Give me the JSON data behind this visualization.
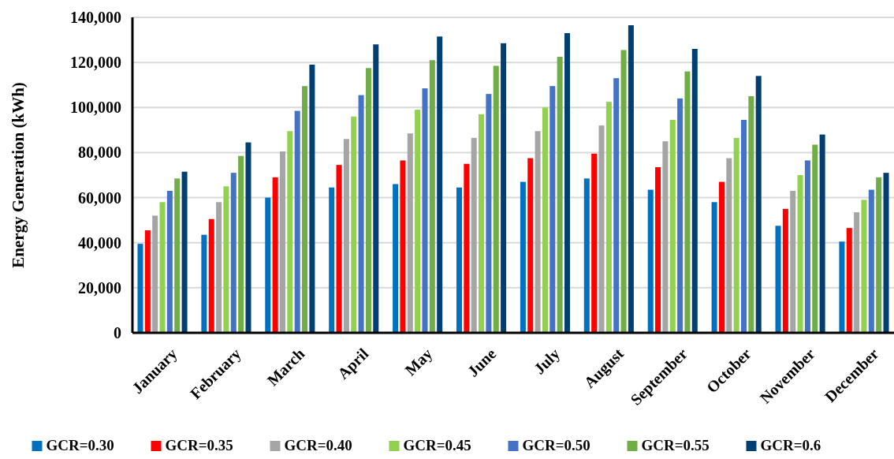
{
  "chart_data": {
    "type": "bar",
    "ylabel": "Energy Generation (kWh)",
    "categories": [
      "January",
      "February",
      "March",
      "April",
      "May",
      "June",
      "July",
      "August",
      "September",
      "October",
      "November",
      "December"
    ],
    "series": [
      {
        "name": "GCR=0.30",
        "color": "#0070c0",
        "values": [
          39500,
          43500,
          60000,
          64500,
          66000,
          64500,
          67000,
          68500,
          63500,
          58000,
          47500,
          40500
        ]
      },
      {
        "name": "GCR=0.35",
        "color": "#ff0000",
        "values": [
          45500,
          50500,
          69000,
          74500,
          76500,
          75000,
          77500,
          79500,
          73500,
          67000,
          55000,
          46500
        ]
      },
      {
        "name": "GCR=0.40",
        "color": "#a5a5a5",
        "values": [
          52000,
          58000,
          80500,
          86000,
          88500,
          86500,
          89500,
          92000,
          85000,
          77500,
          63000,
          53500
        ]
      },
      {
        "name": "GCR=0.45",
        "color": "#92d050",
        "values": [
          58000,
          65000,
          89500,
          96000,
          99000,
          97000,
          100000,
          102500,
          94500,
          86500,
          70000,
          59000
        ]
      },
      {
        "name": "GCR=0.50",
        "color": "#4472c4",
        "values": [
          63000,
          71000,
          98500,
          105500,
          108500,
          106000,
          109500,
          113000,
          104000,
          94500,
          76500,
          63500
        ]
      },
      {
        "name": "GCR=0.55",
        "color": "#70ad47",
        "values": [
          68500,
          78500,
          109500,
          117500,
          121000,
          118500,
          122500,
          125500,
          116000,
          105000,
          83500,
          69000
        ]
      },
      {
        "name": "GCR=0.6",
        "color": "#003f72",
        "values": [
          71500,
          84500,
          119000,
          128000,
          131500,
          128500,
          133000,
          136500,
          126000,
          114000,
          88000,
          71000
        ]
      }
    ],
    "ylim": [
      0,
      140000
    ],
    "yticks": [
      {
        "value": 0,
        "label": "0"
      },
      {
        "value": 20000,
        "label": "20,000"
      },
      {
        "value": 40000,
        "label": "40,000"
      },
      {
        "value": 60000,
        "label": "60,000"
      },
      {
        "value": 80000,
        "label": "80,000"
      },
      {
        "value": 100000,
        "label": "100,000"
      },
      {
        "value": 120000,
        "label": "120,000"
      },
      {
        "value": 140000,
        "label": "140,000"
      }
    ],
    "grid": "y",
    "legend": "bottom"
  }
}
